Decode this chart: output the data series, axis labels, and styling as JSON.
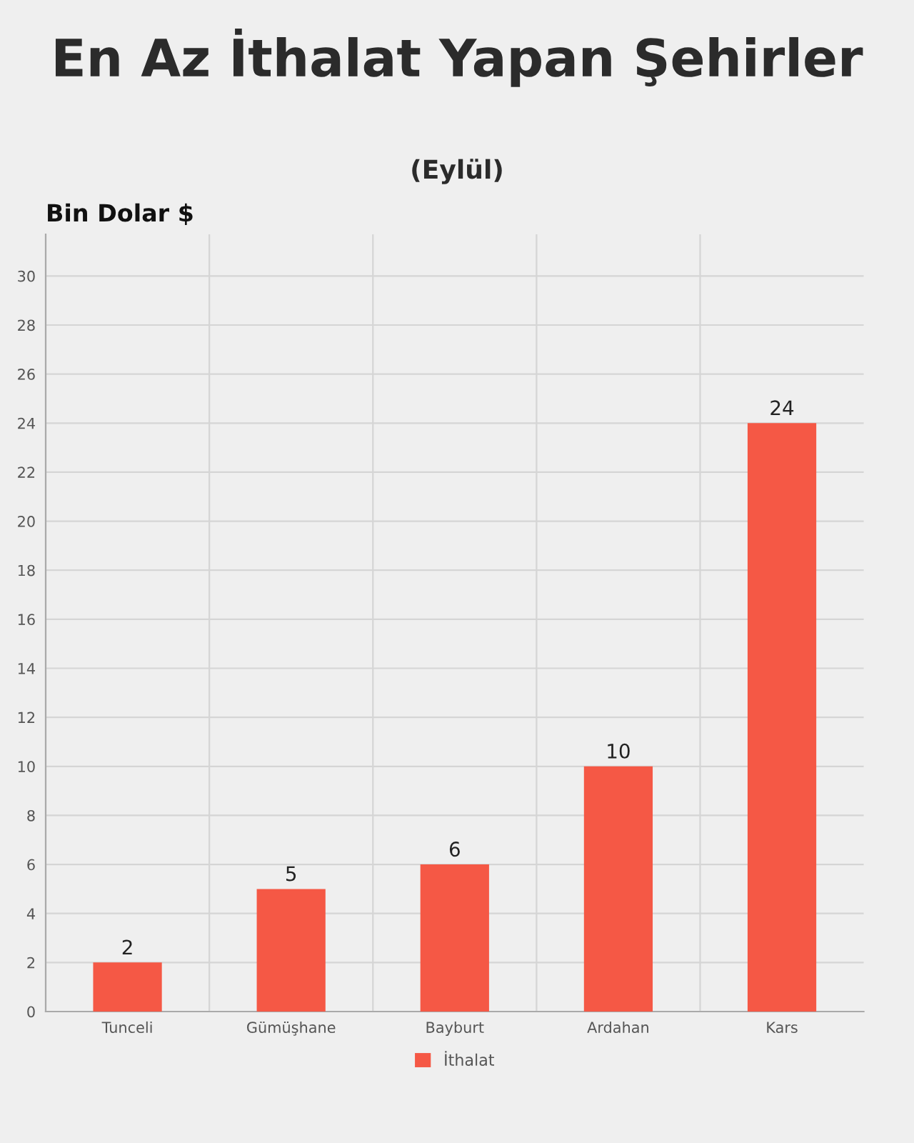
{
  "chart_data": {
    "type": "bar",
    "title": "En Az İthalat Yapan Şehirler",
    "subtitle": "(Eylül)",
    "ylabel": "Bin Dolar $",
    "categories": [
      "Tunceli",
      "Gümüşhane",
      "Bayburt",
      "Ardahan",
      "Kars"
    ],
    "series": [
      {
        "name": "İthalat",
        "color": "#f55845",
        "values": [
          2,
          5,
          6,
          10,
          24
        ]
      }
    ],
    "ylim": [
      0,
      31.7
    ],
    "yticks": [
      0,
      2,
      4,
      6,
      8,
      10,
      12,
      14,
      16,
      18,
      20,
      22,
      24,
      26,
      28,
      30
    ],
    "grid": true,
    "legend": "bottom",
    "data_labels": true
  }
}
